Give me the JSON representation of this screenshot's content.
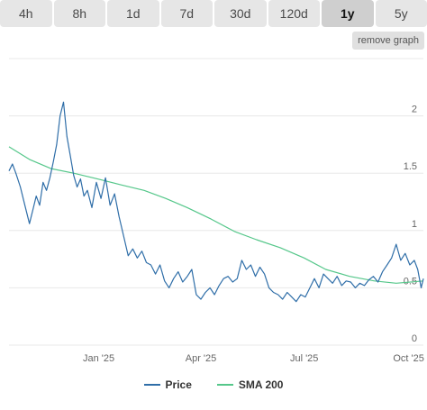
{
  "tabs": [
    {
      "label": "4h",
      "active": false
    },
    {
      "label": "8h",
      "active": false
    },
    {
      "label": "1d",
      "active": false
    },
    {
      "label": "7d",
      "active": false
    },
    {
      "label": "30d",
      "active": false
    },
    {
      "label": "120d",
      "active": false
    },
    {
      "label": "1y",
      "active": true
    },
    {
      "label": "5y",
      "active": false
    }
  ],
  "remove_button_label": "remove graph",
  "colors": {
    "price": "#2f6ea8",
    "sma": "#55c78a",
    "grid": "#e8e8e8"
  },
  "chart_data": {
    "type": "line",
    "ylim": [
      0,
      2.5
    ],
    "y_ticks": [
      {
        "value": 0,
        "label": "0"
      },
      {
        "value": 0.5,
        "label": "0.5"
      },
      {
        "value": 1,
        "label": "1"
      },
      {
        "value": 1.5,
        "label": "1.5"
      },
      {
        "value": 2,
        "label": "2"
      }
    ],
    "xlim": [
      "2024-10-14",
      "2025-10-14"
    ],
    "x_ticks": [
      {
        "date": "2025-01-01",
        "label": "Jan '25"
      },
      {
        "date": "2025-04-01",
        "label": "Apr '25"
      },
      {
        "date": "2025-07-01",
        "label": "Jul '25"
      },
      {
        "date": "2025-10-01",
        "label": "Oct '25"
      }
    ],
    "series": [
      {
        "name": "Price",
        "x": [
          "2024-10-14",
          "2024-10-17",
          "2024-10-20",
          "2024-10-24",
          "2024-10-28",
          "2024-11-01",
          "2024-11-04",
          "2024-11-07",
          "2024-11-10",
          "2024-11-13",
          "2024-11-16",
          "2024-11-19",
          "2024-11-22",
          "2024-11-25",
          "2024-11-28",
          "2024-12-01",
          "2024-12-04",
          "2024-12-07",
          "2024-12-10",
          "2024-12-13",
          "2024-12-16",
          "2024-12-19",
          "2024-12-22",
          "2024-12-26",
          "2024-12-30",
          "2025-01-03",
          "2025-01-07",
          "2025-01-11",
          "2025-01-15",
          "2025-01-19",
          "2025-01-23",
          "2025-01-27",
          "2025-01-31",
          "2025-02-04",
          "2025-02-08",
          "2025-02-12",
          "2025-02-16",
          "2025-02-20",
          "2025-02-24",
          "2025-02-28",
          "2025-03-04",
          "2025-03-08",
          "2025-03-12",
          "2025-03-16",
          "2025-03-20",
          "2025-03-24",
          "2025-03-28",
          "2025-04-01",
          "2025-04-05",
          "2025-04-09",
          "2025-04-13",
          "2025-04-17",
          "2025-04-21",
          "2025-04-25",
          "2025-04-29",
          "2025-05-03",
          "2025-05-07",
          "2025-05-11",
          "2025-05-15",
          "2025-05-19",
          "2025-05-23",
          "2025-05-27",
          "2025-05-31",
          "2025-06-04",
          "2025-06-08",
          "2025-06-12",
          "2025-06-16",
          "2025-06-20",
          "2025-06-24",
          "2025-06-28",
          "2025-07-02",
          "2025-07-06",
          "2025-07-10",
          "2025-07-14",
          "2025-07-18",
          "2025-07-22",
          "2025-07-26",
          "2025-07-30",
          "2025-08-03",
          "2025-08-07",
          "2025-08-11",
          "2025-08-15",
          "2025-08-19",
          "2025-08-23",
          "2025-08-27",
          "2025-08-31",
          "2025-09-04",
          "2025-09-08",
          "2025-09-12",
          "2025-09-16",
          "2025-09-20",
          "2025-09-24",
          "2025-09-28",
          "2025-10-02",
          "2025-10-06",
          "2025-10-09",
          "2025-10-12",
          "2025-10-14"
        ],
        "values": [
          1.52,
          1.58,
          1.5,
          1.38,
          1.22,
          1.06,
          1.18,
          1.3,
          1.22,
          1.42,
          1.35,
          1.46,
          1.6,
          1.75,
          2.0,
          2.12,
          1.82,
          1.65,
          1.48,
          1.38,
          1.45,
          1.3,
          1.35,
          1.2,
          1.42,
          1.28,
          1.46,
          1.22,
          1.32,
          1.12,
          0.95,
          0.78,
          0.84,
          0.76,
          0.82,
          0.72,
          0.7,
          0.62,
          0.7,
          0.56,
          0.5,
          0.58,
          0.64,
          0.55,
          0.6,
          0.66,
          0.44,
          0.4,
          0.46,
          0.5,
          0.44,
          0.52,
          0.58,
          0.6,
          0.55,
          0.58,
          0.74,
          0.66,
          0.7,
          0.6,
          0.68,
          0.62,
          0.5,
          0.46,
          0.44,
          0.4,
          0.46,
          0.42,
          0.38,
          0.44,
          0.42,
          0.5,
          0.58,
          0.5,
          0.62,
          0.58,
          0.54,
          0.6,
          0.52,
          0.56,
          0.55,
          0.5,
          0.54,
          0.52,
          0.57,
          0.6,
          0.55,
          0.64,
          0.7,
          0.76,
          0.88,
          0.74,
          0.8,
          0.7,
          0.74,
          0.66,
          0.5,
          0.58
        ]
      },
      {
        "name": "SMA 200",
        "x": [
          "2024-10-14",
          "2024-11-01",
          "2024-11-20",
          "2024-12-10",
          "2024-12-31",
          "2025-01-20",
          "2025-02-10",
          "2025-03-01",
          "2025-03-20",
          "2025-04-10",
          "2025-05-01",
          "2025-05-20",
          "2025-06-10",
          "2025-07-01",
          "2025-07-20",
          "2025-08-10",
          "2025-09-01",
          "2025-09-20",
          "2025-10-14"
        ],
        "values": [
          1.73,
          1.62,
          1.54,
          1.5,
          1.45,
          1.4,
          1.35,
          1.28,
          1.2,
          1.1,
          0.99,
          0.92,
          0.85,
          0.76,
          0.66,
          0.6,
          0.56,
          0.54,
          0.56
        ]
      }
    ]
  }
}
